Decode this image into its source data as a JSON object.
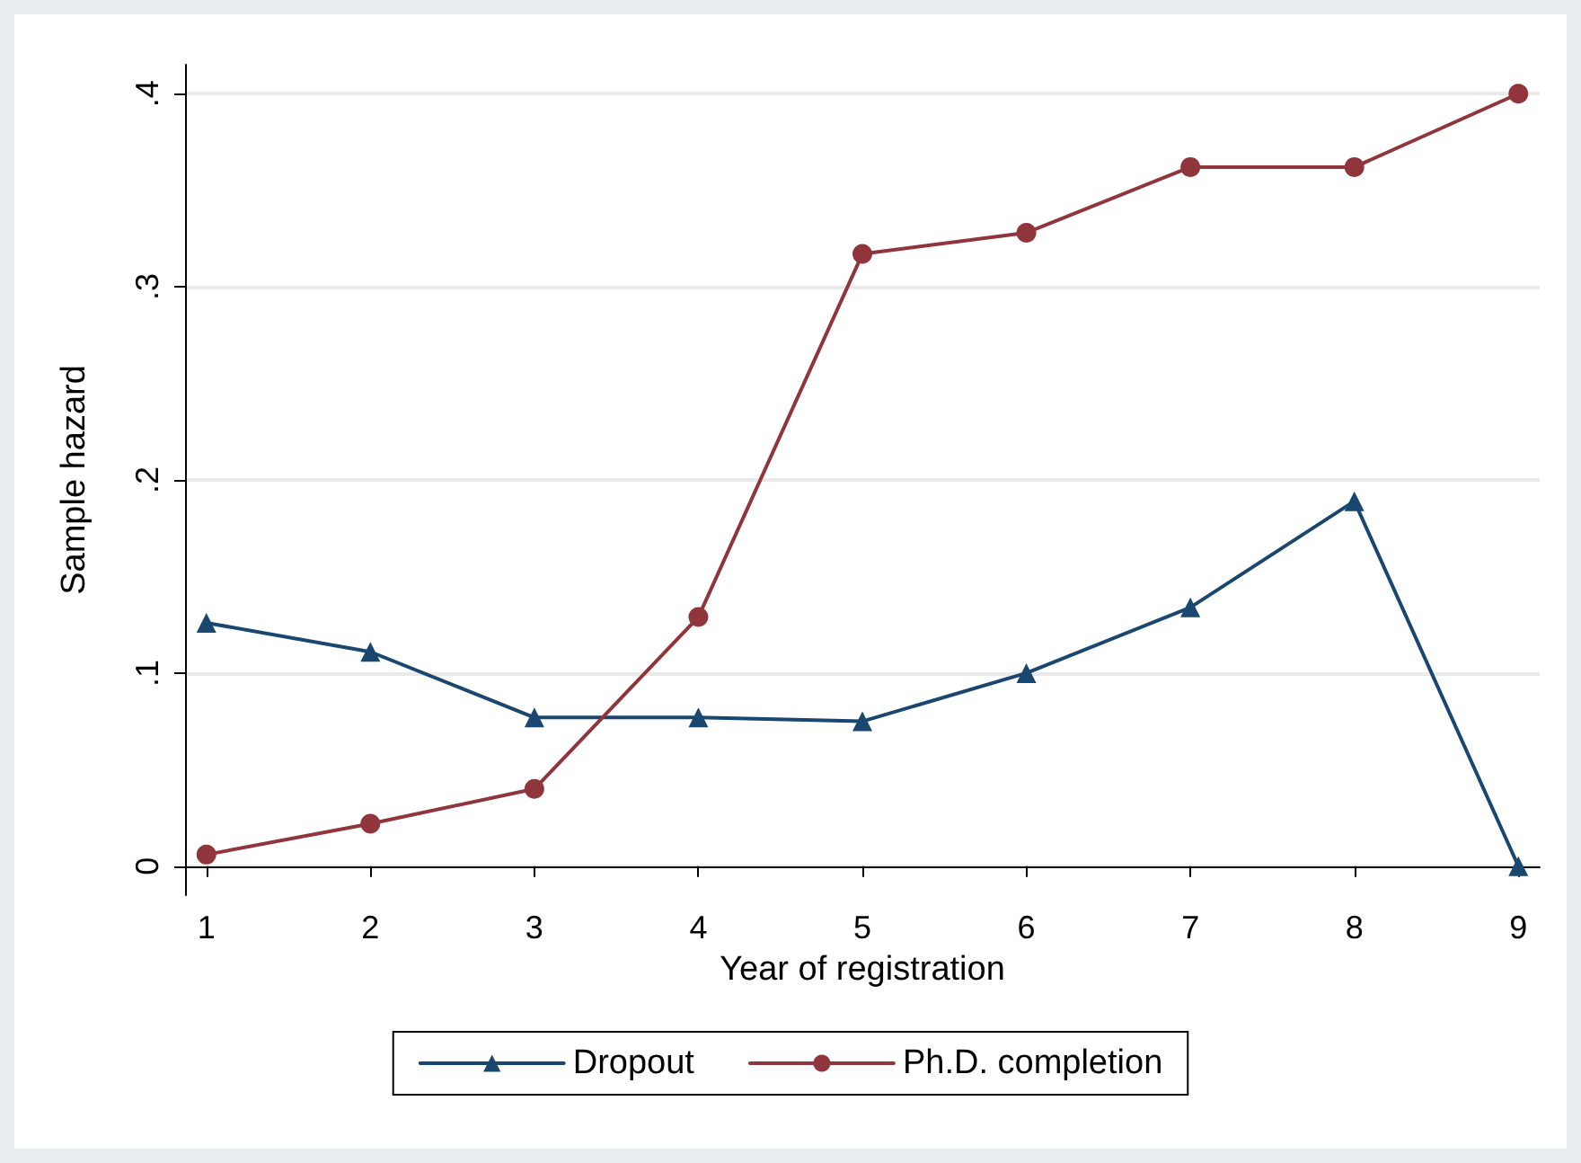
{
  "chart_data": {
    "type": "line",
    "xlabel": "Year of registration",
    "ylabel": "Sample hazard",
    "x": [
      1,
      2,
      3,
      4,
      5,
      6,
      7,
      8,
      9
    ],
    "series": [
      {
        "name": "Dropout",
        "color": "#1a476f",
        "marker": "triangle",
        "values": [
          0.126,
          0.111,
          0.077,
          0.077,
          0.075,
          0.1,
          0.134,
          0.189,
          0
        ]
      },
      {
        "name": "Ph.D. completion",
        "color": "#90353b",
        "marker": "circle",
        "values": [
          0.006,
          0.022,
          0.04,
          0.129,
          0.317,
          0.328,
          0.362,
          0.362,
          0.4
        ]
      }
    ],
    "xlim": [
      0.87,
      9.13
    ],
    "xticks": [
      1,
      2,
      3,
      4,
      5,
      6,
      7,
      8,
      9
    ],
    "ylim": [
      -0.015,
      0.415
    ],
    "yticks": [
      0,
      {
        "value": 0.1,
        "label": ".1"
      },
      {
        "value": 0.2,
        "label": ".2"
      },
      {
        "value": 0.3,
        "label": ".3"
      },
      {
        "value": 0.4,
        "label": ".4"
      }
    ],
    "grid": "y",
    "legend": "bottom",
    "line_style": "solid"
  }
}
